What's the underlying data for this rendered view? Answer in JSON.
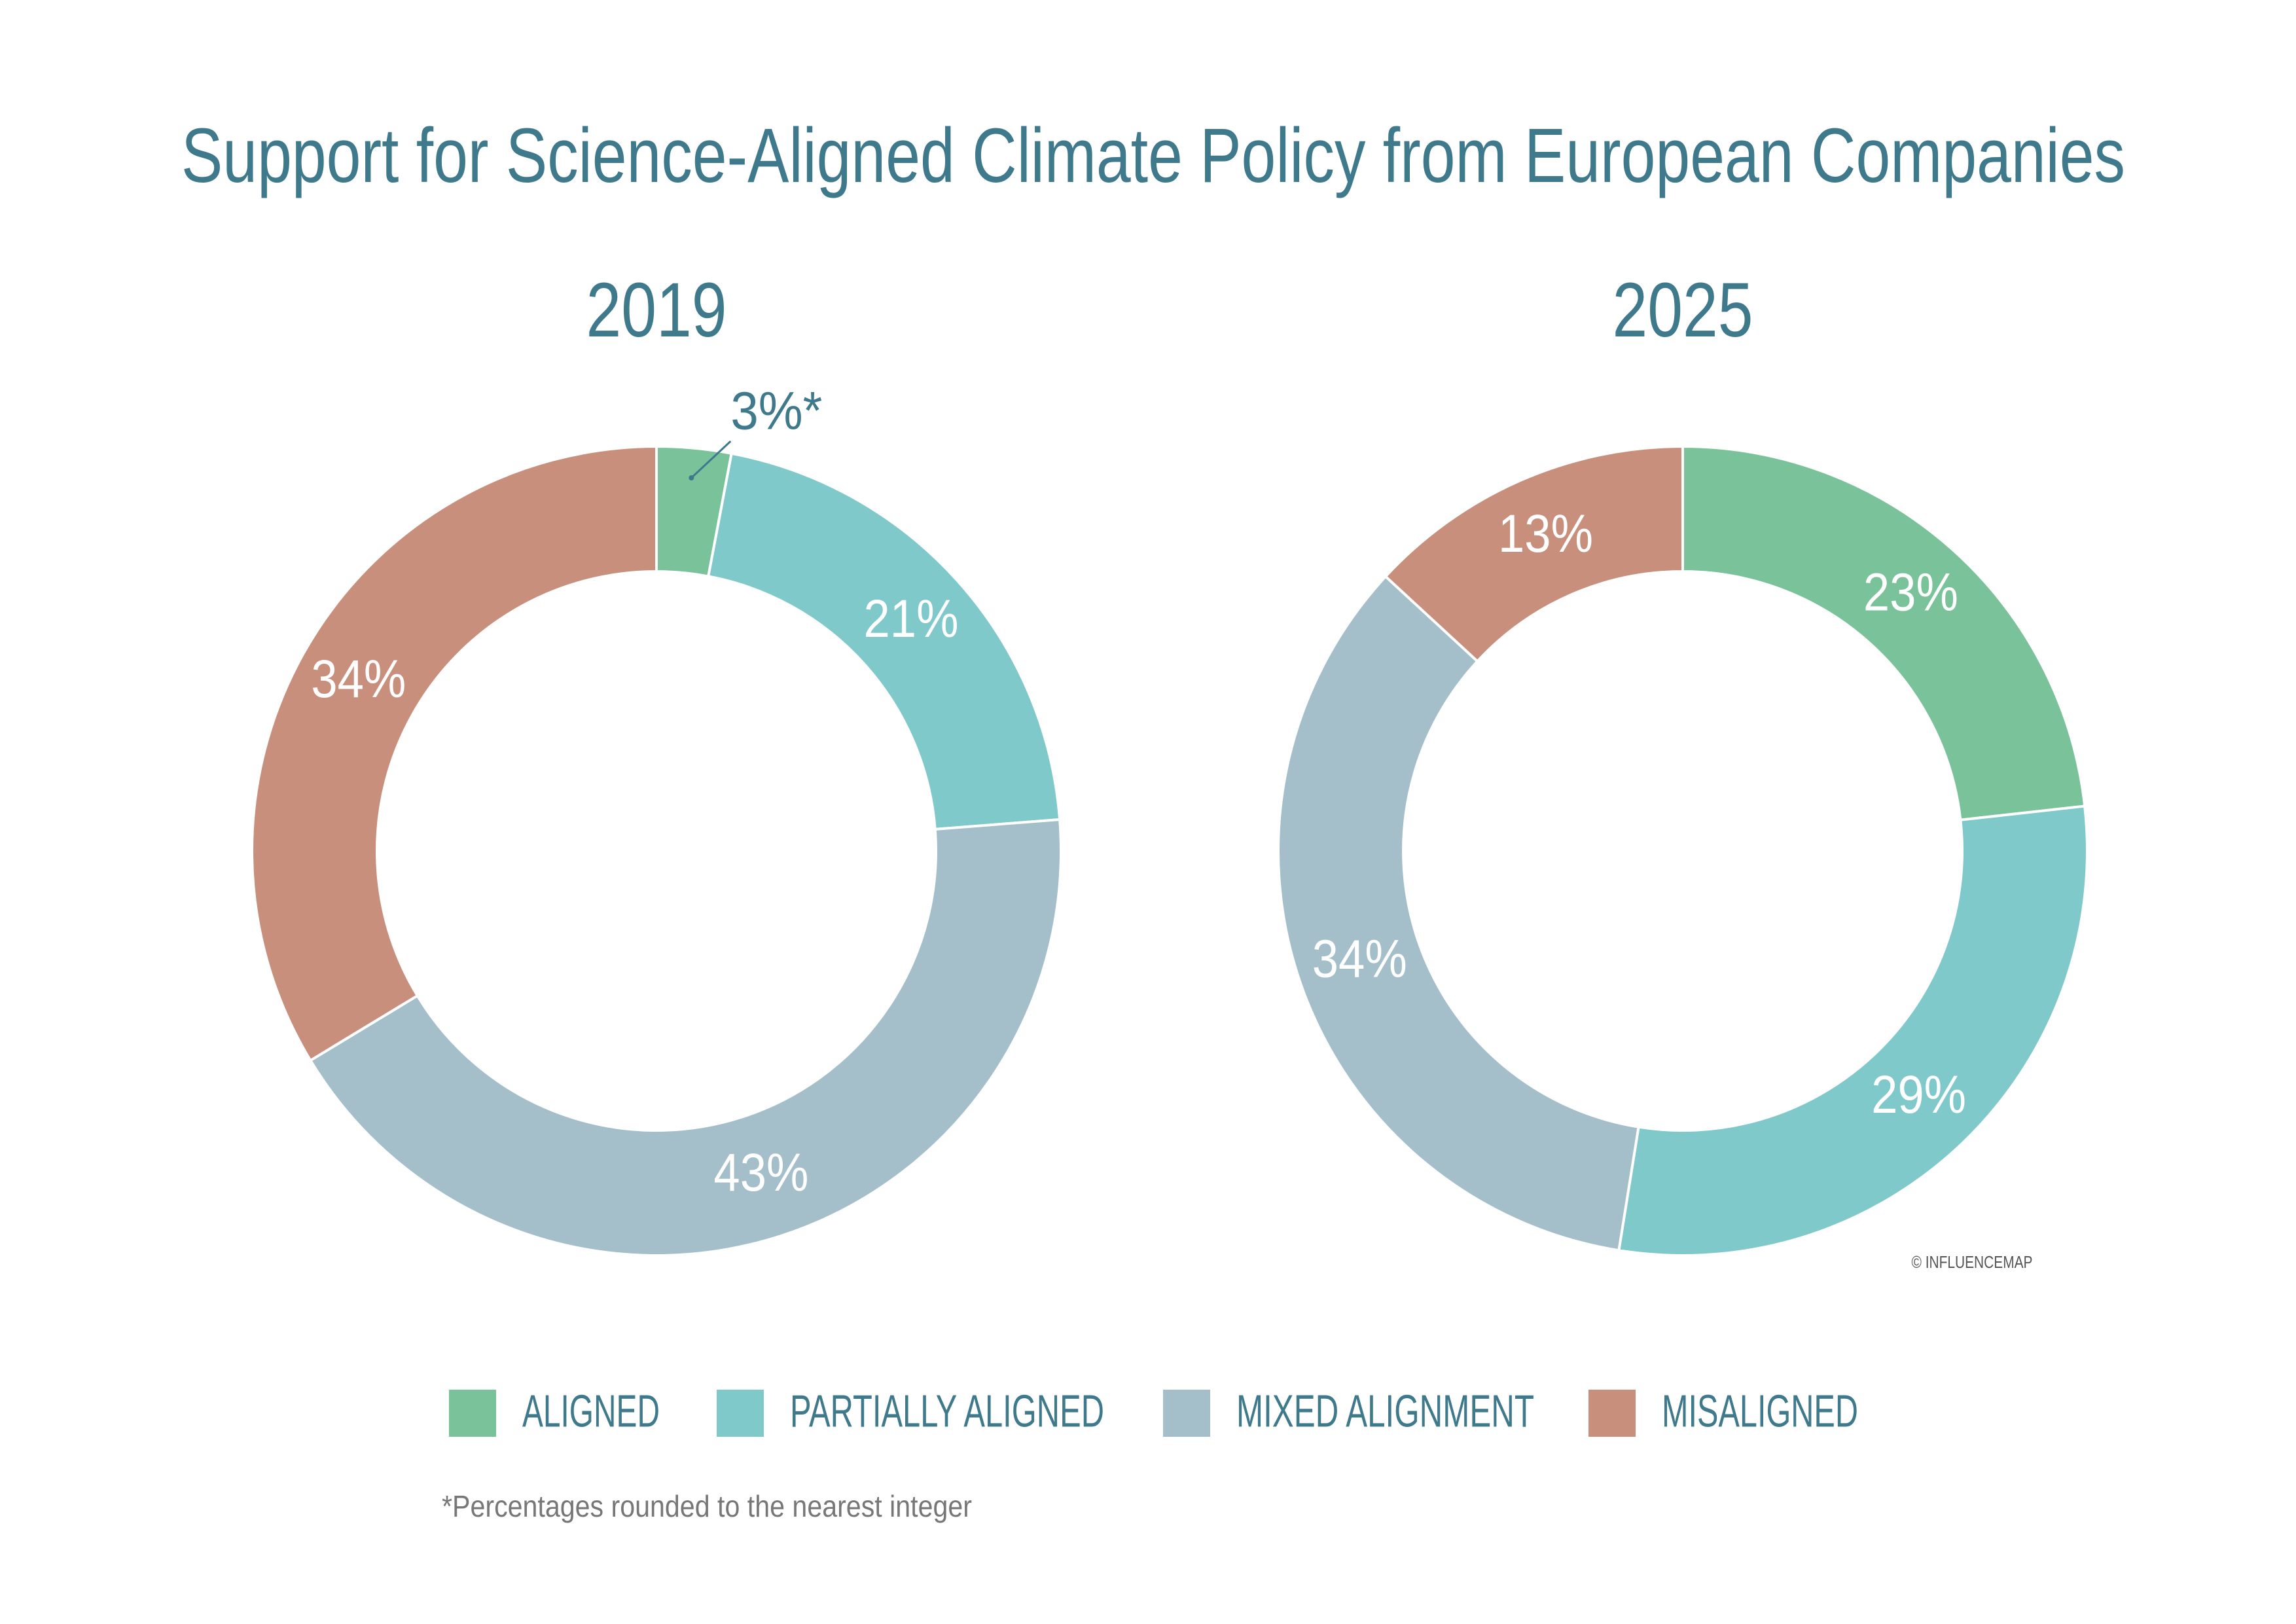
{
  "title": "Support for Science-Aligned Climate Policy from European Companies",
  "chart_data": [
    {
      "type": "pie",
      "donut": true,
      "title": "2019",
      "categories": [
        "ALIGNED",
        "PARTIALLY ALIGNED",
        "MIXED ALIGNMENT",
        "MISALIGNED"
      ],
      "values": [
        3,
        21,
        43,
        34
      ],
      "value_labels": [
        "3%*",
        "21%",
        "43%",
        "34%"
      ],
      "colors": [
        "#79c29a",
        "#80c9ca",
        "#a4bfca",
        "#c98f7d"
      ]
    },
    {
      "type": "pie",
      "donut": true,
      "title": "2025",
      "categories": [
        "ALIGNED",
        "PARTIALLY ALIGNED",
        "MIXED ALIGNMENT",
        "MISALIGNED"
      ],
      "values": [
        23,
        29,
        34,
        13
      ],
      "value_labels": [
        "23%",
        "29%",
        "34%",
        "13%"
      ],
      "colors": [
        "#79c29a",
        "#80c9ca",
        "#a4bfca",
        "#c98f7d"
      ]
    }
  ],
  "footnote": "*Percentages rounded to the nearest integer",
  "credit": "© INFLUENCEMAP"
}
